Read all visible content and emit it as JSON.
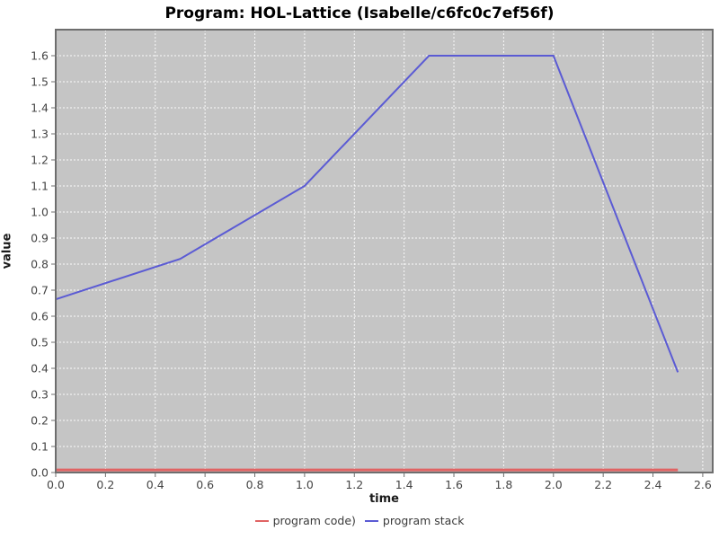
{
  "title": "Program: HOL-Lattice (Isabelle/c6fc0c7ef56f)",
  "chart_data": {
    "type": "line",
    "title": "Program: HOL-Lattice (Isabelle/c6fc0c7ef56f)",
    "xlabel": "time",
    "ylabel": "value",
    "xlim": [
      0,
      2.6
    ],
    "ylim": [
      0,
      1.6
    ],
    "grid": true,
    "legend_position": "bottom",
    "plot_background": "#c5c5c5",
    "plot_border_color": "#6e6e6e",
    "gridline_color": "#ffffff",
    "tick_color": "#6e6e6e",
    "tick_label_color": "#444444",
    "x_ticks": [
      "0.0",
      "0.2",
      "0.4",
      "0.6",
      "0.8",
      "1.0",
      "1.2",
      "1.4",
      "1.6",
      "1.8",
      "2.0",
      "2.2",
      "2.4",
      "2.6"
    ],
    "y_ticks": [
      "0.0",
      "0.1",
      "0.2",
      "0.3",
      "0.4",
      "0.5",
      "0.6",
      "0.7",
      "0.8",
      "0.9",
      "1.0",
      "1.1",
      "1.2",
      "1.3",
      "1.4",
      "1.5",
      "1.6"
    ],
    "series": [
      {
        "name": "program code)",
        "color": "#e06363",
        "stroke_width": 3,
        "x": [
          0.0,
          0.5,
          1.0,
          1.5,
          2.0,
          2.5
        ],
        "values": [
          0.01,
          0.01,
          0.01,
          0.01,
          0.01,
          0.01
        ]
      },
      {
        "name": "program stack",
        "color": "#5b5bd4",
        "stroke_width": 2,
        "x": [
          0.0,
          0.5,
          1.0,
          1.5,
          2.0,
          2.5
        ],
        "values": [
          0.665,
          0.82,
          1.1,
          1.6,
          1.6,
          0.385
        ]
      }
    ]
  }
}
